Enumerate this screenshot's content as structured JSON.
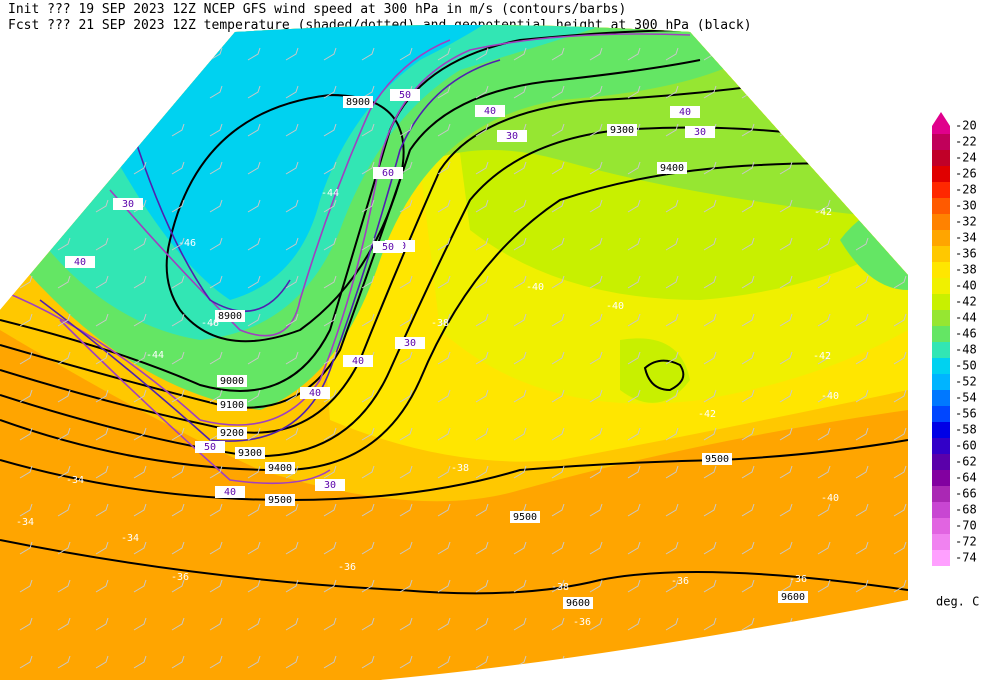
{
  "header": {
    "line1": "Init  ??? 19 SEP 2023 12Z  NCEP GFS wind speed at 300 hPa in m/s (contours/barbs)",
    "line2": "Fcst ??? 21 SEP 2023 12Z  temperature (shaded/dotted) and geopotential height at 300 hPa (black)"
  },
  "colorbar": {
    "levels": [
      -20,
      -22,
      -24,
      -26,
      -28,
      -30,
      -32,
      -34,
      -36,
      -38,
      -40,
      -42,
      -44,
      -46,
      -48,
      -50,
      -52,
      -54,
      -56,
      -58,
      -60,
      -62,
      -64,
      -66,
      -68,
      -70,
      -72,
      -74
    ],
    "colors": [
      "#e0008c",
      "#c0005a",
      "#c00028",
      "#e00000",
      "#ff2800",
      "#ff5a00",
      "#ff8200",
      "#ffa500",
      "#ffc800",
      "#ffe600",
      "#f0f000",
      "#c8f000",
      "#96e632",
      "#64e664",
      "#32e6b4",
      "#00d2f0",
      "#00b4ff",
      "#0078ff",
      "#0046ff",
      "#0000e6",
      "#3200c8",
      "#5a00aa",
      "#8200a0",
      "#aa28b4",
      "#c846d2",
      "#e164e1",
      "#f082f0",
      "#ffa0ff"
    ],
    "unit": "deg. C"
  },
  "labels": {
    "height": [
      8900,
      8900,
      9000,
      9100,
      9200,
      9300,
      9300,
      9400,
      9400,
      9500,
      9500,
      9500,
      9600,
      9600
    ],
    "temperature": [
      -38,
      -38,
      -38,
      -40,
      -40,
      -40,
      -40,
      -42,
      -42,
      -42,
      -44,
      -44,
      -46,
      -46,
      -34,
      -34,
      -34,
      -36,
      -36,
      -36,
      -36,
      -36
    ],
    "wind": [
      30,
      30,
      30,
      30,
      30,
      40,
      40,
      40,
      40,
      40,
      40,
      40,
      50,
      50,
      50,
      60
    ]
  }
}
